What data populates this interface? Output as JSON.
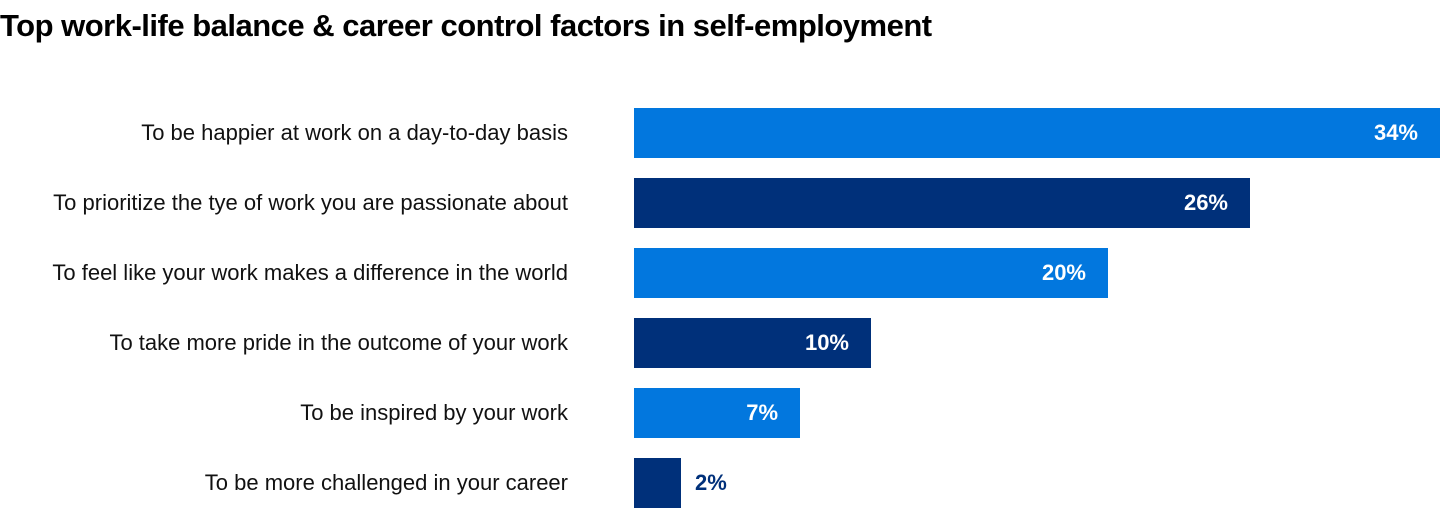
{
  "chart_data": {
    "type": "bar",
    "orientation": "horizontal",
    "title": "Top work-life balance & career control factors in self-employment",
    "categories": [
      "To be happier at work on a day-to-day basis",
      "To prioritize the tye of work you are passionate about",
      "To feel like your work makes a difference in the world",
      "To take more pride in the outcome of your work",
      "To be inspired by your work",
      "To be more challenged in your career"
    ],
    "values": [
      34,
      26,
      20,
      10,
      7,
      2
    ],
    "labels": [
      "34%",
      "26%",
      "20%",
      "10%",
      "7%",
      "2%"
    ],
    "unit": "%",
    "xlim": [
      0,
      34
    ],
    "grid": false,
    "colors": [
      "#0277DE",
      "#00307A",
      "#0277DE",
      "#00307A",
      "#0277DE",
      "#00307A"
    ]
  }
}
